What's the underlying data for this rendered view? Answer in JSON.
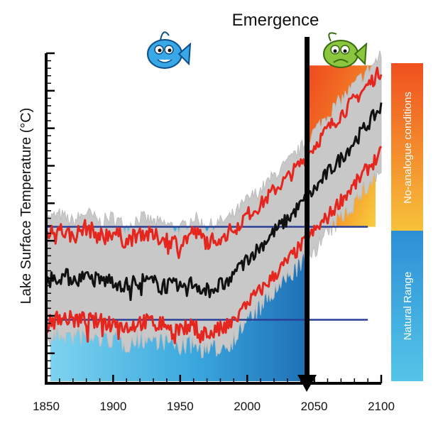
{
  "chart_data": {
    "type": "line",
    "title": "",
    "xlabel": "",
    "ylabel": "Lake Surface Temperature (°C)",
    "xlim": [
      1850,
      2100
    ],
    "x_ticks": [
      1850,
      1900,
      1950,
      2000,
      2050,
      2100
    ],
    "y_tick_labels": false,
    "natural_range": {
      "label": "Natural Range",
      "color": "#2f9fdc"
    },
    "no_analogue": {
      "label": "No-analogue conditions",
      "colors": [
        "#f0501e",
        "#f7c23a"
      ]
    },
    "emergence": {
      "label": "Emergence",
      "year": 2046
    },
    "natural_upper": 0.64,
    "natural_lower": 0.26,
    "series": [
      {
        "color": "#e4261f",
        "years": [
          1850,
          1860,
          1870,
          1880,
          1890,
          1900,
          1910,
          1920,
          1930,
          1940,
          1950,
          1960,
          1970,
          1980,
          1985,
          1990,
          2000,
          2010,
          2020,
          2030,
          2040,
          2050,
          2060,
          2070,
          2080,
          2090,
          2100
        ],
        "values": [
          0.61,
          0.63,
          0.6,
          0.64,
          0.6,
          0.62,
          0.58,
          0.62,
          0.6,
          0.59,
          0.57,
          0.62,
          0.58,
          0.6,
          0.61,
          0.63,
          0.69,
          0.73,
          0.79,
          0.84,
          0.9,
          0.97,
          1.04,
          1.1,
          1.16,
          1.22,
          1.28
        ]
      },
      {
        "color": "#111111",
        "years": [
          1850,
          1860,
          1870,
          1880,
          1890,
          1900,
          1910,
          1920,
          1930,
          1940,
          1950,
          1960,
          1970,
          1980,
          1985,
          1990,
          2000,
          2010,
          2020,
          2030,
          2040,
          2050,
          2060,
          2070,
          2080,
          2090,
          2100
        ],
        "values": [
          0.42,
          0.44,
          0.43,
          0.43,
          0.42,
          0.42,
          0.4,
          0.42,
          0.41,
          0.4,
          0.39,
          0.41,
          0.38,
          0.4,
          0.41,
          0.44,
          0.51,
          0.56,
          0.62,
          0.67,
          0.73,
          0.79,
          0.86,
          0.92,
          0.99,
          1.06,
          1.13
        ]
      },
      {
        "color": "#e4261f",
        "years": [
          1850,
          1860,
          1870,
          1880,
          1890,
          1900,
          1910,
          1920,
          1930,
          1940,
          1950,
          1960,
          1970,
          1980,
          1985,
          1990,
          2000,
          2010,
          2020,
          2030,
          2040,
          2050,
          2060,
          2070,
          2080,
          2090,
          2100
        ],
        "values": [
          0.24,
          0.27,
          0.26,
          0.26,
          0.25,
          0.25,
          0.23,
          0.25,
          0.25,
          0.24,
          0.22,
          0.23,
          0.2,
          0.22,
          0.23,
          0.25,
          0.33,
          0.38,
          0.44,
          0.5,
          0.56,
          0.62,
          0.68,
          0.75,
          0.81,
          0.88,
          0.94
        ]
      }
    ]
  }
}
